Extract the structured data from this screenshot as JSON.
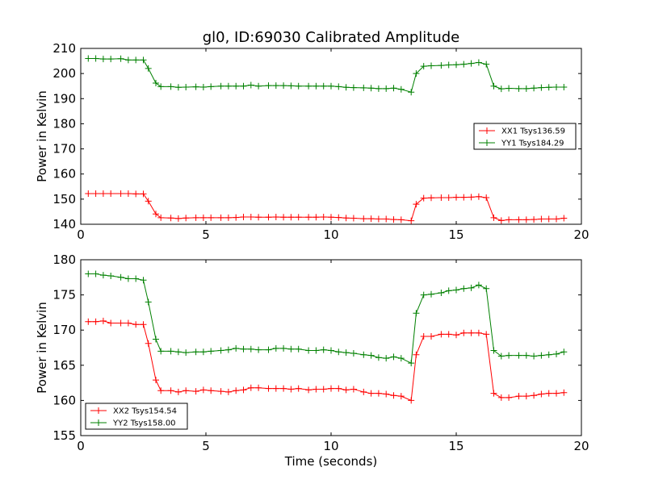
{
  "chart_data": [
    {
      "type": "line",
      "title": "gl0, ID:69030 Calibrated Amplitude",
      "xlabel": "",
      "ylabel": "Power in Kelvin",
      "xlim": [
        0,
        20
      ],
      "ylim": [
        140,
        210
      ],
      "xticks": [
        0,
        5,
        10,
        15,
        20
      ],
      "yticks": [
        140,
        150,
        160,
        170,
        180,
        190,
        200,
        210
      ],
      "grid": false,
      "legend_position": "center-right",
      "x": [
        0.3,
        0.6,
        0.9,
        1.2,
        1.6,
        1.9,
        2.2,
        2.5,
        2.7,
        3.0,
        3.2,
        3.6,
        3.9,
        4.2,
        4.6,
        4.9,
        5.2,
        5.6,
        5.9,
        6.2,
        6.5,
        6.8,
        7.1,
        7.5,
        7.8,
        8.1,
        8.4,
        8.7,
        9.1,
        9.4,
        9.7,
        10.0,
        10.3,
        10.6,
        10.9,
        11.3,
        11.6,
        11.9,
        12.2,
        12.5,
        12.8,
        13.2,
        13.4,
        13.7,
        14.0,
        14.4,
        14.7,
        15.0,
        15.3,
        15.6,
        15.9,
        16.2,
        16.5,
        16.8,
        17.1,
        17.5,
        17.8,
        18.1,
        18.4,
        18.7,
        19.0,
        19.3
      ],
      "series": [
        {
          "name": "XX1 Tsys136.59",
          "color": "#ff0000",
          "values": [
            152.2,
            152.2,
            152.2,
            152.2,
            152.2,
            152.2,
            152.1,
            152.1,
            149.2,
            144.1,
            142.6,
            142.5,
            142.3,
            142.5,
            142.6,
            142.6,
            142.6,
            142.6,
            142.6,
            142.7,
            142.9,
            142.9,
            142.8,
            142.8,
            142.9,
            142.8,
            142.8,
            142.8,
            142.8,
            142.8,
            142.9,
            142.8,
            142.7,
            142.5,
            142.4,
            142.2,
            142.2,
            142.1,
            142.1,
            141.9,
            141.8,
            141.4,
            148.0,
            150.4,
            150.5,
            150.6,
            150.6,
            150.7,
            150.7,
            150.8,
            151.0,
            150.6,
            142.6,
            141.5,
            141.8,
            141.8,
            141.8,
            141.9,
            142.1,
            142.1,
            142.1,
            142.4
          ]
        },
        {
          "name": "YY1 Tsys184.29",
          "color": "#008000",
          "values": [
            206.0,
            206.0,
            205.8,
            205.8,
            205.9,
            205.4,
            205.4,
            205.4,
            202.0,
            196.2,
            194.8,
            194.8,
            194.5,
            194.6,
            194.7,
            194.6,
            194.8,
            195.0,
            195.0,
            195.0,
            195.0,
            195.4,
            195.0,
            195.2,
            195.2,
            195.2,
            195.1,
            195.0,
            195.0,
            195.0,
            195.0,
            195.0,
            194.8,
            194.5,
            194.4,
            194.3,
            194.2,
            194.0,
            194.0,
            194.2,
            193.7,
            192.6,
            200.0,
            202.9,
            203.1,
            203.2,
            203.4,
            203.5,
            203.7,
            204.0,
            204.4,
            203.7,
            195.0,
            193.9,
            194.1,
            194.0,
            194.0,
            194.2,
            194.4,
            194.5,
            194.6,
            194.6
          ]
        }
      ]
    },
    {
      "type": "line",
      "title": "",
      "xlabel": "Time (seconds)",
      "ylabel": "Power in Kelvin",
      "xlim": [
        0,
        20
      ],
      "ylim": [
        155,
        180
      ],
      "xticks": [
        0,
        5,
        10,
        15,
        20
      ],
      "yticks": [
        155,
        160,
        165,
        170,
        175,
        180
      ],
      "grid": false,
      "legend_position": "lower-left",
      "x": [
        0.3,
        0.6,
        0.9,
        1.2,
        1.6,
        1.9,
        2.2,
        2.5,
        2.7,
        3.0,
        3.2,
        3.6,
        3.9,
        4.2,
        4.6,
        4.9,
        5.2,
        5.6,
        5.9,
        6.2,
        6.5,
        6.8,
        7.1,
        7.5,
        7.8,
        8.1,
        8.4,
        8.7,
        9.1,
        9.4,
        9.7,
        10.0,
        10.3,
        10.6,
        10.9,
        11.3,
        11.6,
        11.9,
        12.2,
        12.5,
        12.8,
        13.2,
        13.4,
        13.7,
        14.0,
        14.4,
        14.7,
        15.0,
        15.3,
        15.6,
        15.9,
        16.2,
        16.5,
        16.8,
        17.1,
        17.5,
        17.8,
        18.1,
        18.4,
        18.7,
        19.0,
        19.3
      ],
      "series": [
        {
          "name": "XX2 Tsys154.54",
          "color": "#ff0000",
          "values": [
            171.2,
            171.2,
            171.3,
            171.0,
            171.0,
            171.0,
            170.8,
            170.8,
            168.1,
            162.9,
            161.4,
            161.4,
            161.2,
            161.4,
            161.3,
            161.5,
            161.4,
            161.3,
            161.2,
            161.4,
            161.5,
            161.8,
            161.8,
            161.7,
            161.7,
            161.7,
            161.6,
            161.7,
            161.5,
            161.6,
            161.6,
            161.7,
            161.7,
            161.5,
            161.6,
            161.2,
            161.0,
            161.0,
            160.9,
            160.7,
            160.6,
            160.0,
            166.5,
            169.1,
            169.1,
            169.4,
            169.4,
            169.3,
            169.6,
            169.6,
            169.6,
            169.4,
            161.0,
            160.4,
            160.4,
            160.6,
            160.6,
            160.7,
            160.9,
            161.0,
            161.0,
            161.1
          ]
        },
        {
          "name": "YY2 Tsys158.00",
          "color": "#008000",
          "values": [
            178.0,
            178.0,
            177.8,
            177.7,
            177.5,
            177.3,
            177.3,
            177.1,
            174.0,
            168.7,
            167.0,
            167.0,
            166.9,
            166.8,
            166.9,
            166.9,
            167.0,
            167.1,
            167.2,
            167.4,
            167.3,
            167.3,
            167.2,
            167.2,
            167.4,
            167.4,
            167.3,
            167.3,
            167.1,
            167.1,
            167.2,
            167.1,
            166.9,
            166.8,
            166.7,
            166.5,
            166.4,
            166.1,
            166.0,
            166.2,
            166.0,
            165.3,
            172.4,
            175.0,
            175.1,
            175.3,
            175.6,
            175.7,
            175.9,
            176.0,
            176.4,
            175.9,
            167.1,
            166.3,
            166.4,
            166.4,
            166.4,
            166.3,
            166.4,
            166.5,
            166.6,
            166.9
          ]
        }
      ]
    }
  ]
}
